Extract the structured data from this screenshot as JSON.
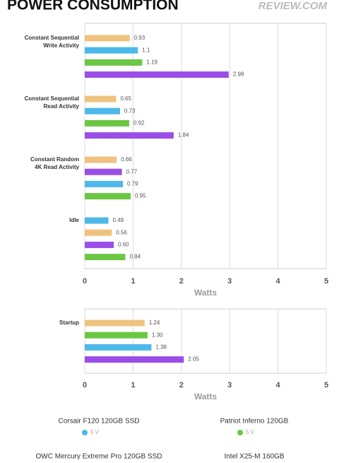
{
  "title": "POWER CONSUMPTION",
  "logo": "REVIEW.COM",
  "chart_data": [
    {
      "type": "bar",
      "orientation": "horizontal",
      "xlabel": "Watts",
      "xlim": [
        0,
        5
      ],
      "xticks": [
        0,
        1,
        2,
        3,
        4,
        5
      ],
      "grid": true,
      "groups": [
        {
          "label_lines": [
            "Constant Sequential",
            "Write Activity"
          ],
          "values": [
            0.93,
            1.1,
            1.19,
            2.98
          ],
          "value_labels": [
            "0.93",
            "1.1",
            "1.19",
            "2.98"
          ],
          "colors": [
            "#f0c27f",
            "#4db8ea",
            "#6cc644",
            "#9b4de8"
          ]
        },
        {
          "label_lines": [
            "Constant Sequential",
            "Read Activity"
          ],
          "values": [
            0.65,
            0.73,
            0.92,
            1.84
          ],
          "value_labels": [
            "0.65",
            "0.73",
            "0.92",
            "1.84"
          ],
          "colors": [
            "#f0c27f",
            "#4db8ea",
            "#6cc644",
            "#9b4de8"
          ]
        },
        {
          "label_lines": [
            "Constant Random",
            "4K Read Activity"
          ],
          "values": [
            0.66,
            0.77,
            0.79,
            0.95
          ],
          "value_labels": [
            "0.66",
            "0.77",
            "0.79",
            "0.95"
          ],
          "colors": [
            "#f0c27f",
            "#9b4de8",
            "#4db8ea",
            "#6cc644"
          ]
        },
        {
          "label_lines": [
            "Idle"
          ],
          "values": [
            0.49,
            0.56,
            0.6,
            0.84
          ],
          "value_labels": [
            "0.49",
            "0.56",
            "0.60",
            "0.84"
          ],
          "colors": [
            "#4db8ea",
            "#f0c27f",
            "#9b4de8",
            "#6cc644"
          ]
        }
      ]
    },
    {
      "type": "bar",
      "orientation": "horizontal",
      "xlabel": "Watts",
      "xlim": [
        0,
        5
      ],
      "xticks": [
        0,
        1,
        2,
        3,
        4,
        5
      ],
      "grid": true,
      "groups": [
        {
          "label_lines": [
            "Startup"
          ],
          "values": [
            1.24,
            1.3,
            1.38,
            2.05
          ],
          "value_labels": [
            "1.24",
            "1.30",
            "1.38",
            "2.05"
          ],
          "colors": [
            "#f0c27f",
            "#6cc644",
            "#4db8ea",
            "#9b4de8"
          ]
        }
      ]
    }
  ],
  "legend": [
    {
      "name": "Corsair F120 120GB SSD",
      "color": "#4db8ea",
      "note": "5 V"
    },
    {
      "name": "Patriot Inferno 120GB",
      "color": "#6cc644",
      "note": "5 V"
    },
    {
      "name": "OWC Mercury Extreme Pro 120GB SSD",
      "color": "#f0c27f"
    },
    {
      "name": "Intel X25-M 160GB",
      "color": "#9b4de8"
    }
  ]
}
